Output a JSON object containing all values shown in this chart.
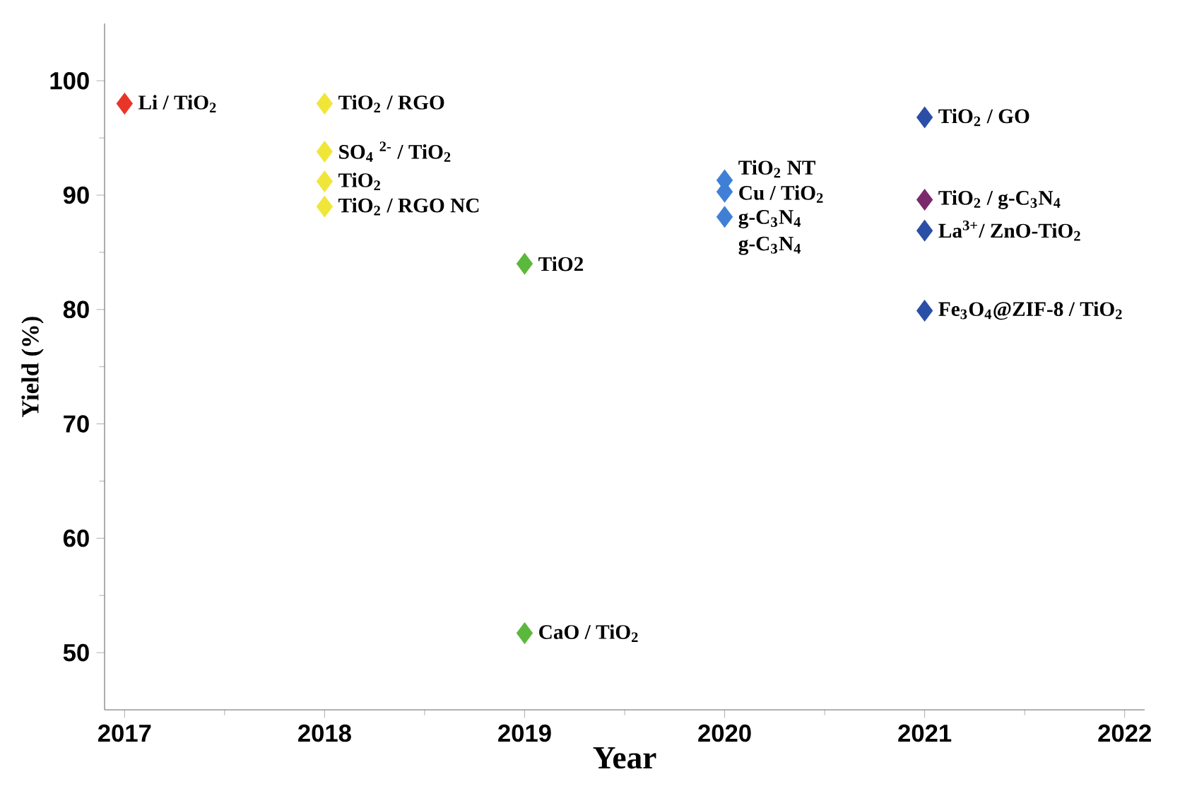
{
  "chart_data": {
    "type": "scatter",
    "xlabel": "Year",
    "ylabel": "Yield (%)",
    "xlim": [
      2016.9,
      2022.1
    ],
    "ylim": [
      45,
      105
    ],
    "xticks": [
      2017,
      2018,
      2019,
      2020,
      2021,
      2022
    ],
    "yticks": [
      50,
      60,
      70,
      80,
      90,
      100
    ],
    "marker": "diamond",
    "series": [
      {
        "color": "#e8352a",
        "x": [
          2017
        ],
        "values": [
          98
        ]
      },
      {
        "color": "#f0e63a",
        "x": [
          2018,
          2018,
          2018,
          2018
        ],
        "values": [
          98,
          93.8,
          91.2,
          89
        ]
      },
      {
        "color": "#5cb83c",
        "x": [
          2019,
          2019
        ],
        "values": [
          84,
          51.7
        ]
      },
      {
        "color": "#3f7fd6",
        "x": [
          2020,
          2020,
          2020
        ],
        "values": [
          91.3,
          90.3,
          88.1
        ]
      },
      {
        "color": "#2b4ea6",
        "x": [
          2021,
          2021,
          2021
        ],
        "values": [
          96.8,
          86.9,
          79.9
        ]
      },
      {
        "color": "#7a2a6a",
        "x": [
          2021
        ],
        "values": [
          89.6
        ]
      }
    ],
    "annotations": [
      {
        "text": "Li / TiO$_{2}$",
        "x": 2017,
        "y": 98
      },
      {
        "text": "TiO$_{2}$ / RGO",
        "x": 2018,
        "y": 98
      },
      {
        "text": "SO$_{4}$ $^{2-}$ / TiO$_{2}$",
        "x": 2018,
        "y": 93.8
      },
      {
        "text": "TiO$_{2}$",
        "x": 2018,
        "y": 91.2
      },
      {
        "text": "TiO$_{2}$ / RGO NC",
        "x": 2018,
        "y": 89
      },
      {
        "text": "TiO2",
        "x": 2019,
        "y": 84
      },
      {
        "text": "CaO / TiO$_{2}$",
        "x": 2019,
        "y": 51.7
      },
      {
        "text": "TiO$_{2}$ NT",
        "x": 2020,
        "y": 92.3
      },
      {
        "text": "Cu / TiO$_{2}$",
        "x": 2020,
        "y": 90.1
      },
      {
        "text": "g-C$_{3}$N$_{4}$",
        "x": 2020,
        "y": 87.9
      },
      "g-C$_{3}$N$_{4}$",
      {
        "text": "TiO$_{2}$ / GO",
        "x": 2021,
        "y": 96.8
      },
      {
        "text": "TiO$_{2}$ / g-C$_{3}$N$_{4}$",
        "x": 2021,
        "y": 89.6
      },
      {
        "text": "La$^{3+}$/ ZnO-TiO$_{2}$",
        "x": 2021,
        "y": 86.9
      },
      {
        "text": "Fe$_{3}$O$_{4}$@ZIF-8 / TiO$_{2}$",
        "x": 2021,
        "y": 79.9
      }
    ]
  }
}
